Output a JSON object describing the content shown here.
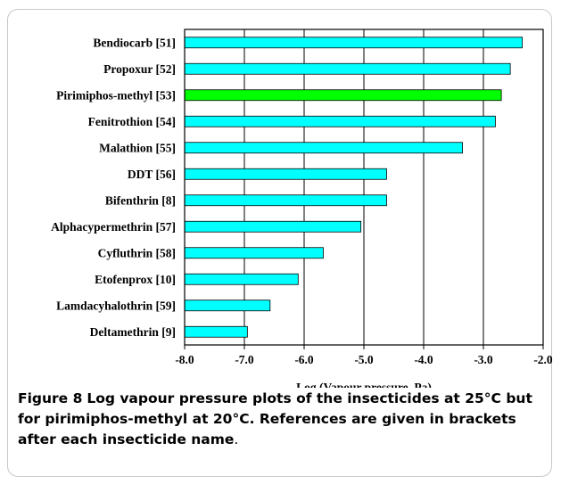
{
  "chart_data": {
    "type": "bar",
    "orientation": "horizontal",
    "categories": [
      "Bendiocarb [51]",
      "Propoxur [52]",
      "Pirimiphos-methyl [53]",
      "Fenitrothion [54]",
      "Malathion [55]",
      "DDT [56]",
      "Bifenthrin [8]",
      "Alphacypermethrin [57]",
      "Cyfluthrin [58]",
      "Etofenprox [10]",
      "Lamdacyhalothrin  [59]",
      "Deltamethrin [9]"
    ],
    "values": [
      -2.35,
      -2.55,
      -2.7,
      -2.8,
      -3.35,
      -4.62,
      -4.62,
      -5.05,
      -5.68,
      -6.1,
      -6.57,
      -6.95
    ],
    "colors": [
      "#00ffff",
      "#00ffff",
      "#00ff00",
      "#00ffff",
      "#00ffff",
      "#00ffff",
      "#00ffff",
      "#00ffff",
      "#00ffff",
      "#00ffff",
      "#00ffff",
      "#00ffff"
    ],
    "xlabel": "Log (Vapour pressure, Pa)",
    "xlim": [
      -8.0,
      -2.0
    ],
    "xticks": [
      "-8.0",
      "-7.0",
      "-6.0",
      "-5.0",
      "-4.0",
      "-3.0",
      "-2.0"
    ],
    "grid": "vertical lines",
    "legend": "none"
  },
  "caption": {
    "label": "Figure 8",
    "text": "Log vapour pressure plots of the insecticides at 25°C but for pirimiphos-methyl at 20°C. References are given in brackets after each insecticide name",
    "end": "."
  }
}
